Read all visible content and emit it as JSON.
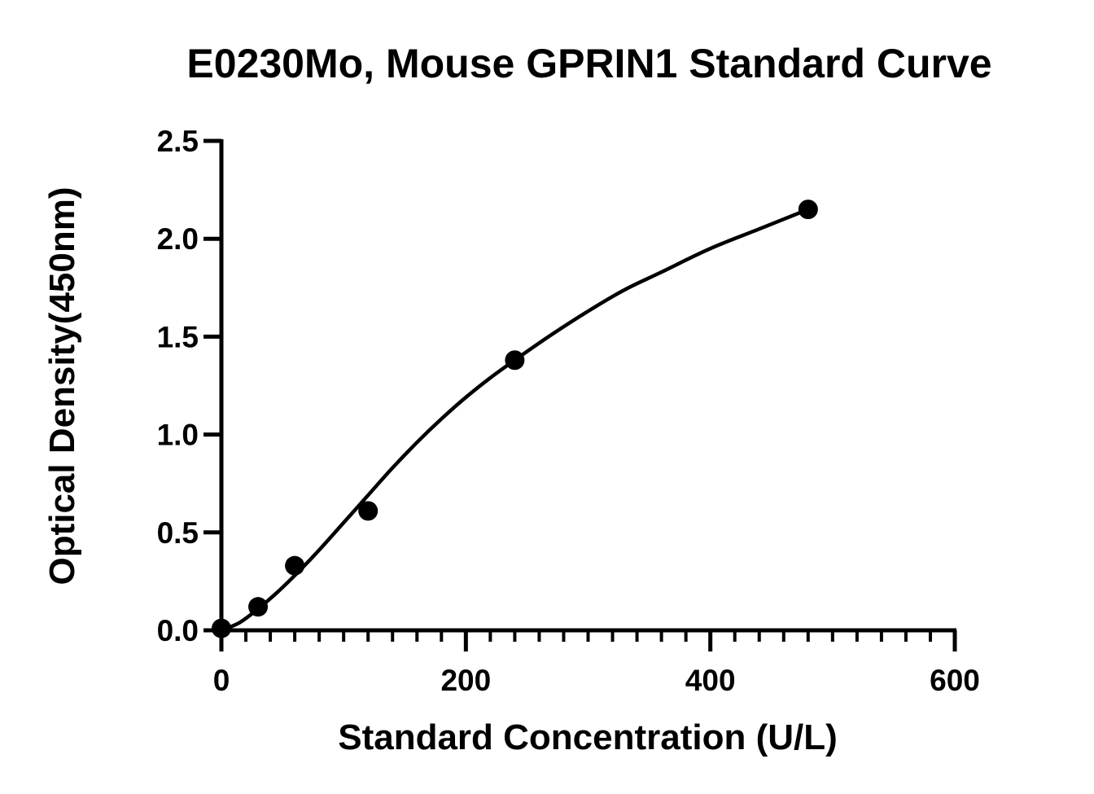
{
  "chart_data": {
    "type": "scatter",
    "title": "E0230Mo, Mouse GPRIN1 Standard Curve",
    "xlabel": "Standard Concentration (U/L)",
    "ylabel": "Optical Density(450nm)",
    "xlim": [
      0,
      600
    ],
    "ylim": [
      0,
      2.5
    ],
    "x_ticks": [
      "0",
      "200",
      "400",
      "600"
    ],
    "y_ticks": [
      "0.0",
      "0.5",
      "1.0",
      "1.5",
      "2.0",
      "2.5"
    ],
    "grid": false,
    "series": [
      {
        "points": [
          {
            "x": 0,
            "y": 0.01
          },
          {
            "x": 30,
            "y": 0.12
          },
          {
            "x": 60,
            "y": 0.33
          },
          {
            "x": 120,
            "y": 0.61
          },
          {
            "x": 240,
            "y": 1.38
          },
          {
            "x": 480,
            "y": 2.15
          }
        ],
        "fit_curve": [
          {
            "x": 0,
            "y": 0.0
          },
          {
            "x": 15,
            "y": 0.04
          },
          {
            "x": 30,
            "y": 0.11
          },
          {
            "x": 45,
            "y": 0.19
          },
          {
            "x": 60,
            "y": 0.28
          },
          {
            "x": 80,
            "y": 0.41
          },
          {
            "x": 100,
            "y": 0.55
          },
          {
            "x": 120,
            "y": 0.69
          },
          {
            "x": 140,
            "y": 0.83
          },
          {
            "x": 160,
            "y": 0.96
          },
          {
            "x": 180,
            "y": 1.08
          },
          {
            "x": 200,
            "y": 1.19
          },
          {
            "x": 220,
            "y": 1.29
          },
          {
            "x": 240,
            "y": 1.38
          },
          {
            "x": 270,
            "y": 1.51
          },
          {
            "x": 300,
            "y": 1.63
          },
          {
            "x": 330,
            "y": 1.74
          },
          {
            "x": 360,
            "y": 1.83
          },
          {
            "x": 400,
            "y": 1.95
          },
          {
            "x": 440,
            "y": 2.05
          },
          {
            "x": 480,
            "y": 2.15
          }
        ]
      }
    ]
  }
}
